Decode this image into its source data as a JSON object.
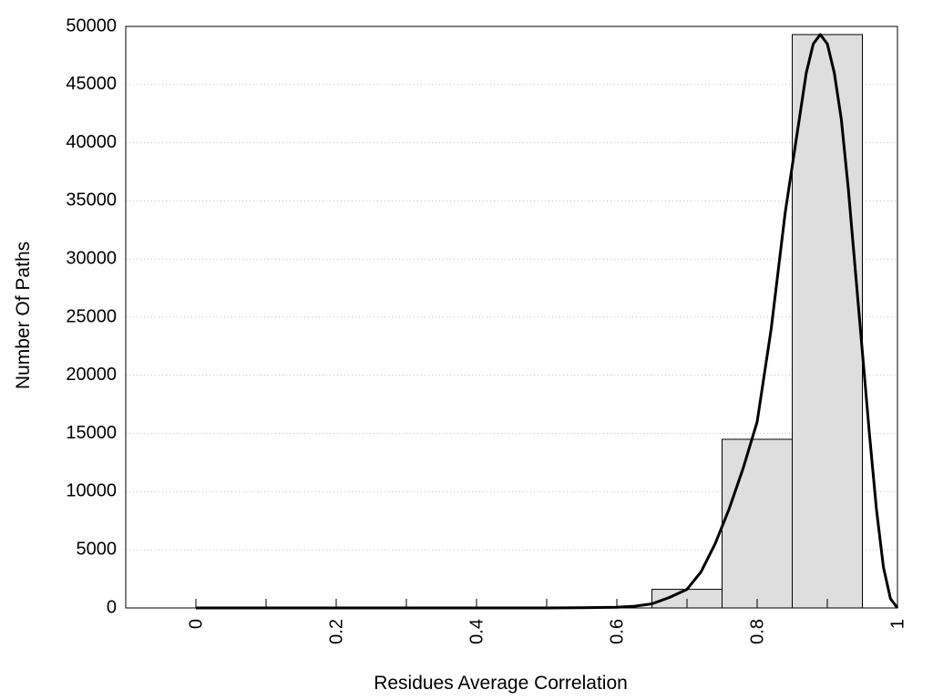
{
  "chart_data": {
    "type": "bar",
    "title": "",
    "xlabel": "Residues Average Correlation",
    "ylabel": "Number Of Paths",
    "xlim": [
      -0.1,
      1.0
    ],
    "ylim": [
      0,
      50000
    ],
    "x_ticks": [
      0,
      0.2,
      0.4,
      0.6,
      0.8,
      1
    ],
    "x_tick_labels": [
      "0",
      "0.2",
      "0.4",
      "0.6",
      "0.8",
      "1"
    ],
    "x_minor_ticks": [
      0.1,
      0.3,
      0.5,
      0.7,
      0.9
    ],
    "y_ticks": [
      0,
      5000,
      10000,
      15000,
      20000,
      25000,
      30000,
      35000,
      40000,
      45000,
      50000
    ],
    "y_tick_labels": [
      "0",
      "5000",
      "10000",
      "15000",
      "20000",
      "25000",
      "30000",
      "35000",
      "40000",
      "45000",
      "50000"
    ],
    "grid": "horizontal-dotted",
    "bar_color": "#dedede",
    "bar_edge_color": "#000000",
    "line_color": "#000000",
    "bins": [
      {
        "x0": 0.65,
        "x1": 0.75,
        "value": 1600
      },
      {
        "x0": 0.75,
        "x1": 0.85,
        "value": 14500
      },
      {
        "x0": 0.85,
        "x1": 0.95,
        "value": 49300
      }
    ],
    "series": [
      {
        "type": "line",
        "x": [
          0,
          0.1,
          0.2,
          0.3,
          0.4,
          0.5,
          0.55,
          0.6,
          0.625,
          0.65,
          0.675,
          0.7,
          0.72,
          0.74,
          0.76,
          0.78,
          0.8,
          0.82,
          0.84,
          0.86,
          0.87,
          0.88,
          0.89,
          0.9,
          0.91,
          0.92,
          0.93,
          0.94,
          0.95,
          0.96,
          0.97,
          0.98,
          0.99,
          1.0
        ],
        "y": [
          0,
          0,
          0,
          0,
          0,
          0,
          20,
          60,
          150,
          350,
          900,
          1600,
          3100,
          5500,
          8500,
          12000,
          16000,
          24000,
          34000,
          42000,
          46000,
          48500,
          49300,
          48500,
          46000,
          42000,
          36000,
          29000,
          22000,
          15000,
          8500,
          3500,
          800,
          0
        ]
      }
    ]
  }
}
